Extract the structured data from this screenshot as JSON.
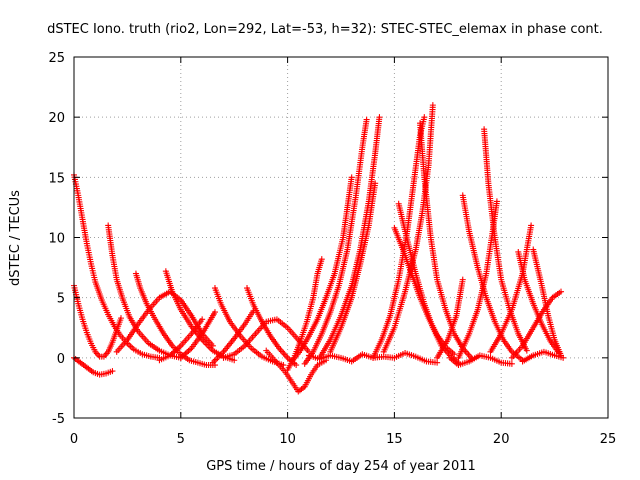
{
  "chart_data": {
    "type": "scatter",
    "title": "dSTEC Iono. truth (rio2, Lon=292, Lat=-53, h=32): STEC-STEC_elemax in phase cont.",
    "xlabel": "GPS time / hours of day 254 of year 2011",
    "ylabel": "dSTEC  / TECUs",
    "xlim": [
      0,
      25
    ],
    "ylim": [
      -5,
      25
    ],
    "xticks": [
      "0",
      "5",
      "10",
      "15",
      "20",
      "25"
    ],
    "yticks": [
      "-5",
      "0",
      "5",
      "10",
      "15",
      "20",
      "25"
    ],
    "grid": true,
    "marker": "+",
    "color": "#ff0000",
    "series": [
      {
        "points": [
          [
            0.0,
            15.2
          ],
          [
            0.2,
            13.5
          ],
          [
            0.4,
            11.5
          ],
          [
            0.6,
            9.5
          ],
          [
            0.8,
            7.8
          ],
          [
            1.0,
            6.3
          ],
          [
            1.3,
            4.8
          ],
          [
            1.6,
            3.6
          ],
          [
            1.9,
            2.6
          ],
          [
            2.2,
            1.8
          ],
          [
            2.5,
            1.2
          ],
          [
            2.8,
            0.7
          ],
          [
            3.2,
            0.3
          ],
          [
            3.6,
            0.1
          ],
          [
            4.0,
            0.0
          ]
        ]
      },
      {
        "points": [
          [
            0.0,
            6.0
          ],
          [
            0.2,
            4.5
          ],
          [
            0.4,
            3.2
          ],
          [
            0.6,
            2.1
          ],
          [
            0.8,
            1.2
          ],
          [
            1.0,
            0.5
          ],
          [
            1.2,
            0.1
          ],
          [
            1.4,
            0.1
          ],
          [
            1.6,
            0.5
          ],
          [
            1.8,
            1.3
          ],
          [
            2.0,
            2.3
          ],
          [
            2.2,
            3.3
          ]
        ]
      },
      {
        "points": [
          [
            0.0,
            0.0
          ],
          [
            0.3,
            -0.4
          ],
          [
            0.6,
            -0.8
          ],
          [
            0.9,
            -1.2
          ],
          [
            1.2,
            -1.4
          ],
          [
            1.5,
            -1.3
          ],
          [
            1.8,
            -1.1
          ]
        ]
      },
      {
        "points": [
          [
            1.6,
            11.0
          ],
          [
            1.8,
            8.5
          ],
          [
            2.0,
            6.5
          ],
          [
            2.3,
            4.8
          ],
          [
            2.6,
            3.4
          ],
          [
            3.0,
            2.2
          ],
          [
            3.5,
            1.2
          ],
          [
            4.0,
            0.6
          ],
          [
            4.5,
            0.2
          ],
          [
            5.0,
            0.0
          ]
        ]
      },
      {
        "points": [
          [
            2.9,
            7.0
          ],
          [
            3.1,
            5.8
          ],
          [
            3.4,
            4.5
          ],
          [
            3.8,
            3.2
          ],
          [
            4.2,
            2.0
          ],
          [
            4.6,
            1.0
          ],
          [
            5.0,
            0.3
          ],
          [
            5.4,
            -0.2
          ],
          [
            5.8,
            -0.4
          ],
          [
            6.2,
            -0.6
          ],
          [
            6.6,
            -0.6
          ]
        ]
      },
      {
        "points": [
          [
            2.0,
            0.5
          ],
          [
            2.5,
            1.5
          ],
          [
            3.0,
            2.8
          ],
          [
            3.5,
            4.0
          ],
          [
            4.0,
            5.0
          ],
          [
            4.5,
            5.5
          ],
          [
            5.0,
            4.8
          ],
          [
            5.5,
            3.5
          ],
          [
            6.0,
            2.0
          ],
          [
            6.5,
            1.0
          ]
        ]
      },
      {
        "points": [
          [
            4.3,
            7.2
          ],
          [
            4.6,
            5.5
          ],
          [
            5.0,
            4.0
          ],
          [
            5.5,
            2.6
          ],
          [
            6.0,
            1.5
          ],
          [
            6.5,
            0.6
          ],
          [
            7.0,
            0.1
          ],
          [
            7.5,
            -0.2
          ]
        ]
      },
      {
        "points": [
          [
            5.0,
            0.0
          ],
          [
            5.5,
            0.8
          ],
          [
            6.0,
            2.0
          ],
          [
            6.4,
            3.2
          ],
          [
            6.6,
            3.8
          ]
        ]
      },
      {
        "points": [
          [
            4.0,
            -0.2
          ],
          [
            4.5,
            0.2
          ],
          [
            5.0,
            1.0
          ],
          [
            5.5,
            2.0
          ],
          [
            6.0,
            3.2
          ]
        ]
      },
      {
        "points": [
          [
            6.5,
            -0.4
          ],
          [
            7.0,
            0.5
          ],
          [
            7.5,
            1.6
          ],
          [
            8.0,
            2.8
          ],
          [
            8.4,
            3.9
          ]
        ]
      },
      {
        "points": [
          [
            6.6,
            5.8
          ],
          [
            6.9,
            4.4
          ],
          [
            7.3,
            3.0
          ],
          [
            7.8,
            1.8
          ],
          [
            8.3,
            0.8
          ],
          [
            8.8,
            0.1
          ],
          [
            9.3,
            -0.3
          ],
          [
            9.8,
            -0.6
          ]
        ]
      },
      {
        "points": [
          [
            8.1,
            5.8
          ],
          [
            8.4,
            4.4
          ],
          [
            8.8,
            3.0
          ],
          [
            9.2,
            1.8
          ],
          [
            9.6,
            0.8
          ],
          [
            10.0,
            0.0
          ],
          [
            10.4,
            -0.6
          ]
        ]
      },
      {
        "points": [
          [
            7.0,
            0.0
          ],
          [
            7.5,
            0.3
          ],
          [
            8.0,
            1.0
          ],
          [
            8.5,
            2.0
          ],
          [
            9.0,
            3.0
          ],
          [
            9.5,
            3.2
          ],
          [
            10.0,
            2.5
          ],
          [
            10.5,
            1.5
          ],
          [
            11.0,
            0.5
          ]
        ]
      },
      {
        "points": [
          [
            9.0,
            0.6
          ],
          [
            9.3,
            0.0
          ],
          [
            9.6,
            -0.6
          ],
          [
            9.9,
            -1.2
          ],
          [
            10.2,
            -2.0
          ],
          [
            10.5,
            -2.8
          ],
          [
            10.8,
            -2.4
          ],
          [
            11.1,
            -1.4
          ],
          [
            11.4,
            -0.6
          ],
          [
            11.8,
            -0.2
          ]
        ]
      },
      {
        "points": [
          [
            10.0,
            -1.0
          ],
          [
            10.3,
            0.0
          ],
          [
            10.6,
            1.4
          ],
          [
            10.9,
            3.0
          ],
          [
            11.2,
            5.0
          ],
          [
            11.4,
            7.0
          ],
          [
            11.6,
            8.2
          ]
        ]
      },
      {
        "points": [
          [
            10.2,
            -0.3
          ],
          [
            10.6,
            0.6
          ],
          [
            11.0,
            1.8
          ],
          [
            11.4,
            3.2
          ],
          [
            11.8,
            5.0
          ],
          [
            12.2,
            7.0
          ],
          [
            12.6,
            10.0
          ],
          [
            13.0,
            15.0
          ]
        ]
      },
      {
        "points": [
          [
            10.8,
            -0.5
          ],
          [
            11.2,
            0.5
          ],
          [
            11.6,
            2.0
          ],
          [
            12.0,
            3.8
          ],
          [
            12.4,
            6.0
          ],
          [
            12.8,
            9.0
          ],
          [
            13.2,
            13.5
          ],
          [
            13.5,
            17.5
          ],
          [
            13.7,
            19.8
          ]
        ]
      },
      {
        "points": [
          [
            11.5,
            0.0
          ],
          [
            12.0,
            1.5
          ],
          [
            12.5,
            3.5
          ],
          [
            13.0,
            6.0
          ],
          [
            13.4,
            9.0
          ],
          [
            13.8,
            13.0
          ],
          [
            14.1,
            17.0
          ],
          [
            14.3,
            20.0
          ]
        ]
      },
      {
        "points": [
          [
            12.0,
            0.5
          ],
          [
            12.5,
            2.5
          ],
          [
            13.0,
            5.0
          ],
          [
            13.4,
            7.8
          ],
          [
            13.8,
            11.0
          ],
          [
            14.1,
            14.5
          ]
        ]
      },
      {
        "points": [
          [
            11.0,
            0.2
          ],
          [
            11.5,
            -0.1
          ],
          [
            12.0,
            0.2
          ],
          [
            12.5,
            0.0
          ],
          [
            13.0,
            -0.3
          ],
          [
            13.5,
            0.3
          ],
          [
            14.0,
            0.0
          ],
          [
            14.5,
            0.1
          ],
          [
            15.0,
            0.0
          ],
          [
            15.5,
            0.4
          ],
          [
            16.0,
            0.1
          ],
          [
            16.5,
            -0.3
          ],
          [
            17.0,
            -0.4
          ]
        ]
      },
      {
        "points": [
          [
            14.0,
            0.0
          ],
          [
            14.4,
            1.5
          ],
          [
            14.8,
            3.5
          ],
          [
            15.2,
            6.5
          ],
          [
            15.6,
            10.5
          ],
          [
            15.9,
            14.5
          ],
          [
            16.2,
            18.5
          ],
          [
            16.4,
            20.0
          ]
        ]
      },
      {
        "points": [
          [
            15.2,
            12.8
          ],
          [
            15.6,
            9.8
          ],
          [
            16.0,
            7.0
          ],
          [
            16.4,
            4.5
          ],
          [
            16.8,
            2.5
          ],
          [
            17.2,
            1.0
          ],
          [
            17.6,
            0.2
          ],
          [
            18.0,
            -0.4
          ]
        ]
      },
      {
        "points": [
          [
            16.2,
            19.5
          ],
          [
            16.4,
            15.0
          ],
          [
            16.7,
            10.0
          ],
          [
            17.0,
            6.5
          ],
          [
            17.4,
            4.0
          ],
          [
            17.8,
            2.0
          ],
          [
            18.2,
            0.8
          ],
          [
            18.6,
            0.0
          ]
        ]
      },
      {
        "points": [
          [
            14.5,
            0.5
          ],
          [
            15.0,
            2.5
          ],
          [
            15.5,
            5.5
          ],
          [
            16.0,
            9.0
          ],
          [
            16.3,
            12.0
          ],
          [
            16.6,
            16.0
          ],
          [
            16.8,
            21.0
          ]
        ]
      },
      {
        "points": [
          [
            15.0,
            10.8
          ],
          [
            15.4,
            9.0
          ],
          [
            15.8,
            7.0
          ],
          [
            16.2,
            5.0
          ],
          [
            16.6,
            3.3
          ],
          [
            17.0,
            1.9
          ],
          [
            17.4,
            0.9
          ],
          [
            17.8,
            0.3
          ]
        ]
      },
      {
        "points": [
          [
            17.0,
            0.0
          ],
          [
            17.5,
            1.5
          ],
          [
            17.9,
            3.5
          ],
          [
            18.2,
            6.5
          ]
        ]
      },
      {
        "points": [
          [
            18.2,
            13.5
          ],
          [
            18.5,
            10.5
          ],
          [
            18.9,
            7.5
          ],
          [
            19.3,
            5.0
          ],
          [
            19.7,
            3.0
          ],
          [
            20.1,
            1.5
          ],
          [
            20.5,
            0.5
          ],
          [
            21.0,
            -0.2
          ]
        ]
      },
      {
        "points": [
          [
            19.2,
            19.0
          ],
          [
            19.4,
            14.5
          ],
          [
            19.7,
            10.0
          ],
          [
            20.0,
            6.5
          ],
          [
            20.4,
            4.0
          ],
          [
            20.8,
            2.0
          ],
          [
            21.2,
            0.6
          ]
        ]
      },
      {
        "points": [
          [
            18.0,
            0.0
          ],
          [
            18.5,
            2.0
          ],
          [
            18.9,
            4.0
          ],
          [
            19.3,
            7.0
          ],
          [
            19.6,
            10.5
          ],
          [
            19.8,
            13.0
          ]
        ]
      },
      {
        "points": [
          [
            17.6,
            0.0
          ],
          [
            18.0,
            -0.6
          ],
          [
            18.5,
            -0.3
          ],
          [
            19.0,
            0.2
          ],
          [
            19.5,
            0.0
          ],
          [
            20.0,
            -0.4
          ],
          [
            20.5,
            -0.5
          ]
        ]
      },
      {
        "points": [
          [
            19.5,
            0.5
          ],
          [
            20.0,
            2.0
          ],
          [
            20.5,
            4.0
          ],
          [
            21.0,
            7.0
          ],
          [
            21.4,
            11.0
          ]
        ]
      },
      {
        "points": [
          [
            20.8,
            8.8
          ],
          [
            21.1,
            6.5
          ],
          [
            21.5,
            4.5
          ],
          [
            21.9,
            2.8
          ],
          [
            22.3,
            1.4
          ],
          [
            22.7,
            0.4
          ]
        ]
      },
      {
        "points": [
          [
            21.5,
            9.0
          ],
          [
            21.9,
            6.0
          ],
          [
            22.2,
            3.5
          ],
          [
            22.5,
            1.5
          ],
          [
            22.8,
            0.2
          ]
        ]
      },
      {
        "points": [
          [
            20.5,
            0.0
          ],
          [
            21.0,
            1.0
          ],
          [
            21.5,
            2.5
          ],
          [
            22.0,
            4.0
          ],
          [
            22.4,
            5.0
          ],
          [
            22.8,
            5.5
          ]
        ]
      },
      {
        "points": [
          [
            21.0,
            -0.3
          ],
          [
            21.5,
            0.2
          ],
          [
            22.0,
            0.5
          ],
          [
            22.5,
            0.2
          ],
          [
            22.9,
            0.0
          ]
        ]
      }
    ]
  }
}
